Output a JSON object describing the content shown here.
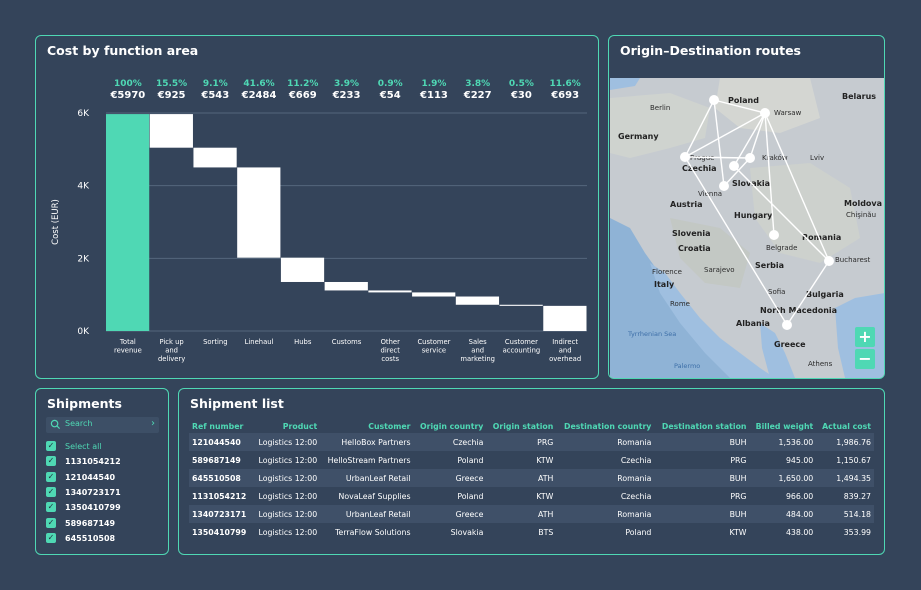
{
  "cost_chart": {
    "title": "Cost by function area",
    "ylabel": "Cost (EUR)",
    "yticks": [
      "0K",
      "2K",
      "4K",
      "6K"
    ],
    "categories": [
      "Total revenue",
      "Pick up and delivery",
      "Sorting",
      "Linehaul",
      "Hubs",
      "Customs",
      "Other direct costs",
      "Customer service",
      "Sales and marketing",
      "Customer accounting",
      "Indirect and overhead"
    ],
    "category_lines": [
      [
        "Total",
        "revenue"
      ],
      [
        "Pick up",
        "and",
        "delivery"
      ],
      [
        "Sorting"
      ],
      [
        "Linehaul"
      ],
      [
        "Hubs"
      ],
      [
        "Customs"
      ],
      [
        "Other",
        "direct",
        "costs"
      ],
      [
        "Customer",
        "service"
      ],
      [
        "Sales",
        "and",
        "marketing"
      ],
      [
        "Customer",
        "accounting"
      ],
      [
        "Indirect",
        "and",
        "overhead"
      ]
    ],
    "percents": [
      "100%",
      "15.5%",
      "9.1%",
      "41.6%",
      "11.2%",
      "3.9%",
      "0.9%",
      "1.9%",
      "3.8%",
      "0.5%",
      "11.6%"
    ],
    "amount_labels": [
      "€5970",
      "€925",
      "€543",
      "€2484",
      "€669",
      "€233",
      "€54",
      "€113",
      "€227",
      "€30",
      "€693"
    ],
    "colors": {
      "revenue": "#4fd8b4",
      "cost": "#ffffff",
      "grid": "#55667c",
      "percent": "#4fd8b4"
    }
  },
  "chart_data": {
    "type": "bar",
    "subtype": "waterfall",
    "title": "Cost by function area",
    "xlabel": "",
    "ylabel": "Cost (EUR)",
    "ylim": [
      0,
      6000
    ],
    "categories": [
      "Total revenue",
      "Pick up and delivery",
      "Sorting",
      "Linehaul",
      "Hubs",
      "Customs",
      "Other direct costs",
      "Customer service",
      "Sales and marketing",
      "Customer accounting",
      "Indirect and overhead"
    ],
    "values": [
      5970,
      925,
      543,
      2484,
      669,
      233,
      54,
      113,
      227,
      30,
      693
    ],
    "percent_of_revenue": [
      100,
      15.5,
      9.1,
      41.6,
      11.2,
      3.9,
      0.9,
      1.9,
      3.8,
      0.5,
      11.6
    ],
    "grid": true
  },
  "map": {
    "title": "Origin–Destination routes",
    "zoom_in": "+",
    "zoom_out": "−",
    "labels": {
      "poland": "Poland",
      "belarus": "Belarus",
      "berlin": "Berlin",
      "warsaw": "Warsaw",
      "germany": "Germany",
      "prague": "Prague",
      "krakow": "Kraków",
      "lviv": "Lviv",
      "czechia": "Czechia",
      "slovakia": "Slovakia",
      "vienna": "Vienna",
      "austria": "Austria",
      "hungary": "Hungary",
      "moldova": "Moldova",
      "chisinau": "Chişinău",
      "slovenia": "Slovenia",
      "croatia": "Croatia",
      "romania": "Romania",
      "belgrade": "Belgrade",
      "sarajevo": "Sarajevo",
      "serbia": "Serbia",
      "bucharest": "Bucharest",
      "florence": "Florence",
      "italy": "Italy",
      "rome": "Rome",
      "bulgaria": "Bulgaria",
      "sofia": "Sofia",
      "albania": "Albania",
      "north_macedonia": "North Macedonia",
      "tyrrhenian": "Tyrrhenian Sea",
      "greece": "Greece",
      "palermo": "Palermo",
      "athens": "Athens"
    }
  },
  "shipments": {
    "title": "Shipments",
    "search_placeholder": "Search",
    "select_all": "Select all",
    "items": [
      "1131054212",
      "121044540",
      "1340723171",
      "1350410799",
      "589687149",
      "645510508"
    ]
  },
  "shipment_list": {
    "title": "Shipment list",
    "headers": [
      "Ref number",
      "Product",
      "Customer",
      "Origin country",
      "Origin station",
      "Destination country",
      "Destination station",
      "Billed weight",
      "Actual cost"
    ],
    "rows": [
      [
        "121044540",
        "Logistics 12:00",
        "HelloBox Partners",
        "Czechia",
        "PRG",
        "Romania",
        "BUH",
        "1,536.00",
        "1,986.76"
      ],
      [
        "589687149",
        "Logistics 12:00",
        "HelloStream Partners",
        "Poland",
        "KTW",
        "Czechia",
        "PRG",
        "945.00",
        "1,150.67"
      ],
      [
        "645510508",
        "Logistics 12:00",
        "UrbanLeaf Retail",
        "Greece",
        "ATH",
        "Romania",
        "BUH",
        "1,650.00",
        "1,494.35"
      ],
      [
        "1131054212",
        "Logistics 12:00",
        "NovaLeaf Supplies",
        "Poland",
        "KTW",
        "Czechia",
        "PRG",
        "966.00",
        "839.27"
      ],
      [
        "1340723171",
        "Logistics 12:00",
        "UrbanLeaf Retail",
        "Greece",
        "ATH",
        "Romania",
        "BUH",
        "484.00",
        "514.18"
      ],
      [
        "1350410799",
        "Logistics 12:00",
        "TerraFlow Solutions",
        "Slovakia",
        "BTS",
        "Poland",
        "KTW",
        "438.00",
        "353.99"
      ]
    ]
  }
}
